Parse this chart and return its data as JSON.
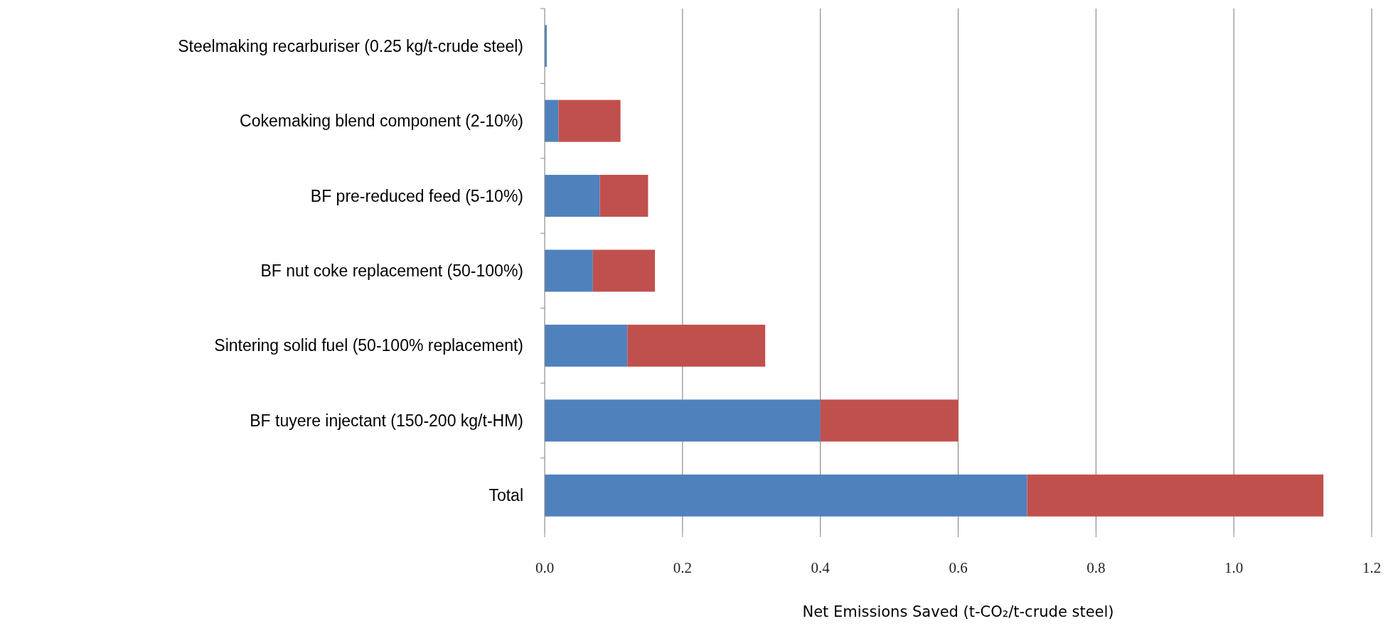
{
  "chart_data": {
    "type": "bar",
    "orientation": "horizontal",
    "stacked": true,
    "categories": [
      "Steelmaking recarburiser (0.25 kg/t-crude steel)",
      "Cokemaking blend component (2-10%)",
      "BF pre-reduced feed (5-10%)",
      "BF nut coke replacement (50-100%)",
      "Sintering solid fuel (50-100% replacement)",
      "BF tuyere injectant (150-200 kg/t-HM)",
      "Total"
    ],
    "series": [
      {
        "color": "#4f81bd",
        "values": [
          0.003,
          0.02,
          0.08,
          0.07,
          0.12,
          0.4,
          0.7
        ]
      },
      {
        "color": "#c0504d",
        "values": [
          0,
          0.09,
          0.07,
          0.09,
          0.2,
          0.2,
          0.43
        ]
      }
    ],
    "xlabel": "Net Emissions Saved (t-CO₂/t-crude steel)",
    "xlim": [
      0,
      1.2
    ],
    "xticks": [
      {
        "value": 0,
        "label": "0.0"
      },
      0.2,
      0.4,
      0.6,
      0.8,
      {
        "value": 1,
        "label": "1.0"
      },
      1.2
    ],
    "grid": "x"
  }
}
